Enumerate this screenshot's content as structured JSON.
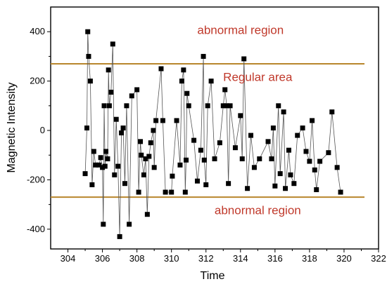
{
  "chart_data": {
    "type": "scatter",
    "title": "",
    "xlabel": "Time",
    "ylabel": "Magnetic Intensity",
    "xlim": [
      303,
      322
    ],
    "ylim": [
      -480,
      500
    ],
    "xticks": [
      304,
      306,
      308,
      310,
      312,
      314,
      316,
      318,
      320,
      322
    ],
    "yticks": [
      400,
      200,
      0,
      -200,
      -400
    ],
    "grid": false,
    "marker": "filled-square",
    "connected": true,
    "series": [
      {
        "values": [
          [
            305.0,
            -175
          ],
          [
            305.1,
            10
          ],
          [
            305.15,
            400
          ],
          [
            305.2,
            300
          ],
          [
            305.3,
            200
          ],
          [
            305.4,
            -220
          ],
          [
            305.5,
            -85
          ],
          [
            305.6,
            -140
          ],
          [
            305.8,
            -140
          ],
          [
            305.9,
            -110
          ],
          [
            306.0,
            -150
          ],
          [
            306.05,
            -380
          ],
          [
            306.1,
            100
          ],
          [
            306.15,
            -145
          ],
          [
            306.2,
            -85
          ],
          [
            306.3,
            -115
          ],
          [
            306.35,
            245
          ],
          [
            306.4,
            100
          ],
          [
            306.5,
            155
          ],
          [
            306.6,
            350
          ],
          [
            306.7,
            -180
          ],
          [
            306.8,
            45
          ],
          [
            306.9,
            -145
          ],
          [
            307.0,
            -430
          ],
          [
            307.1,
            -10
          ],
          [
            307.2,
            10
          ],
          [
            307.3,
            -215
          ],
          [
            307.4,
            100
          ],
          [
            307.55,
            -380
          ],
          [
            307.7,
            140
          ],
          [
            308.0,
            165
          ],
          [
            308.1,
            -250
          ],
          [
            308.2,
            -45
          ],
          [
            308.25,
            -100
          ],
          [
            308.4,
            -180
          ],
          [
            308.5,
            -115
          ],
          [
            308.6,
            -340
          ],
          [
            308.7,
            -105
          ],
          [
            308.8,
            -50
          ],
          [
            308.95,
            0
          ],
          [
            309.0,
            -150
          ],
          [
            309.1,
            40
          ],
          [
            309.4,
            250
          ],
          [
            309.5,
            40
          ],
          [
            309.65,
            -250
          ],
          [
            310.0,
            -250
          ],
          [
            310.05,
            -185
          ],
          [
            310.3,
            40
          ],
          [
            310.5,
            -140
          ],
          [
            310.6,
            200
          ],
          [
            310.7,
            245
          ],
          [
            310.8,
            -250
          ],
          [
            310.85,
            -120
          ],
          [
            310.9,
            150
          ],
          [
            311.0,
            100
          ],
          [
            311.3,
            -40
          ],
          [
            311.5,
            -205
          ],
          [
            311.7,
            -80
          ],
          [
            311.85,
            300
          ],
          [
            311.9,
            -120
          ],
          [
            312.0,
            -220
          ],
          [
            312.1,
            100
          ],
          [
            312.3,
            200
          ],
          [
            312.5,
            -115
          ],
          [
            312.8,
            -50
          ],
          [
            313.0,
            100
          ],
          [
            313.1,
            165
          ],
          [
            313.2,
            100
          ],
          [
            313.3,
            -215
          ],
          [
            313.4,
            100
          ],
          [
            313.7,
            -70
          ],
          [
            314.0,
            60
          ],
          [
            314.1,
            -115
          ],
          [
            314.2,
            290
          ],
          [
            314.4,
            -235
          ],
          [
            314.6,
            -20
          ],
          [
            314.8,
            -150
          ],
          [
            315.1,
            -115
          ],
          [
            315.6,
            -45
          ],
          [
            315.8,
            -115
          ],
          [
            315.9,
            10
          ],
          [
            316.0,
            -225
          ],
          [
            316.2,
            100
          ],
          [
            316.3,
            -175
          ],
          [
            316.5,
            75
          ],
          [
            316.6,
            -235
          ],
          [
            316.8,
            -80
          ],
          [
            316.9,
            -180
          ],
          [
            317.1,
            -215
          ],
          [
            317.3,
            -20
          ],
          [
            317.6,
            10
          ],
          [
            317.8,
            -85
          ],
          [
            318.0,
            -125
          ],
          [
            318.15,
            40
          ],
          [
            318.3,
            -160
          ],
          [
            318.4,
            -240
          ],
          [
            318.6,
            -125
          ],
          [
            319.1,
            -90
          ],
          [
            319.3,
            75
          ],
          [
            319.6,
            -150
          ],
          [
            319.8,
            -250
          ]
        ]
      }
    ],
    "reference_lines": [
      {
        "y": 270,
        "color": "#B8862C"
      },
      {
        "y": -270,
        "color": "#B8862C"
      }
    ],
    "annotations": [
      {
        "text": "abnormal region",
        "x": 314,
        "y": 390,
        "color": "#C0392B"
      },
      {
        "text": "Regular area",
        "x": 315,
        "y": 200,
        "color": "#C0392B"
      },
      {
        "text": "abnormal region",
        "x": 315,
        "y": -340,
        "color": "#C0392B"
      }
    ]
  }
}
